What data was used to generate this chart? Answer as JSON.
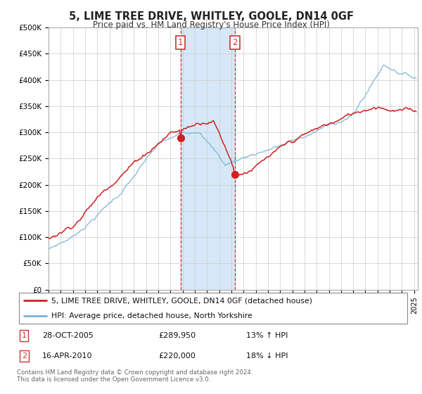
{
  "title": "5, LIME TREE DRIVE, WHITLEY, GOOLE, DN14 0GF",
  "subtitle": "Price paid vs. HM Land Registry's House Price Index (HPI)",
  "ylim": [
    0,
    500000
  ],
  "xlim_start": 1995.0,
  "xlim_end": 2025.3,
  "transaction1_date": 2005.83,
  "transaction1_price": 289950,
  "transaction2_date": 2010.29,
  "transaction2_price": 220000,
  "shaded_color": "#d6e8f7",
  "dashed_color": "#cc3333",
  "hpi_line_color": "#7ab0d4",
  "sold_line_color": "#cc2222",
  "legend_label_sold": "5, LIME TREE DRIVE, WHITLEY, GOOLE, DN14 0GF (detached house)",
  "legend_label_hpi": "HPI: Average price, detached house, North Yorkshire",
  "footer": "Contains HM Land Registry data © Crown copyright and database right 2024.\nThis data is licensed under the Open Government Licence v3.0.",
  "background_color": "#ffffff",
  "grid_color": "#cccccc"
}
